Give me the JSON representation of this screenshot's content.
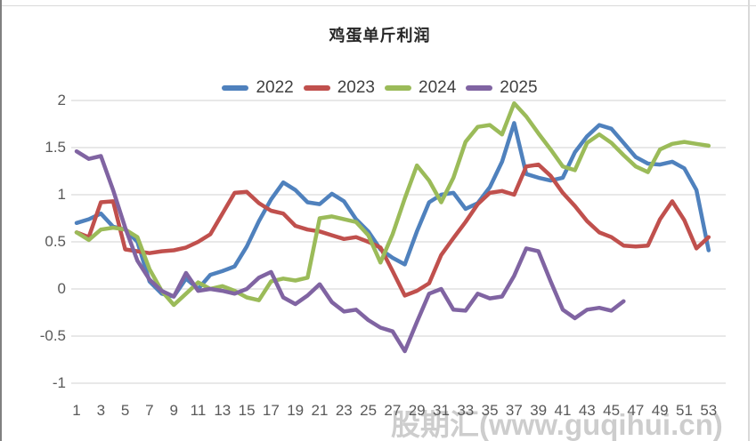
{
  "title": "鸡蛋单斤利润",
  "watermark": "股期汇(www.guqihui.cn)",
  "legend": {
    "items": [
      {
        "label": "2022",
        "color": "#4F81BD"
      },
      {
        "label": "2023",
        "color": "#C0504D"
      },
      {
        "label": "2024",
        "color": "#9BBB59"
      },
      {
        "label": "2025",
        "color": "#8064A2"
      }
    ]
  },
  "chart_data": {
    "type": "line",
    "title": "鸡蛋单斤利润",
    "xlabel": "",
    "ylabel": "",
    "x": [
      1,
      2,
      3,
      4,
      5,
      6,
      7,
      8,
      9,
      10,
      11,
      12,
      13,
      14,
      15,
      16,
      17,
      18,
      19,
      20,
      21,
      22,
      23,
      24,
      25,
      26,
      27,
      28,
      29,
      30,
      31,
      32,
      33,
      34,
      35,
      36,
      37,
      38,
      39,
      40,
      41,
      42,
      43,
      44,
      45,
      46,
      47,
      48,
      49,
      50,
      51,
      52,
      53
    ],
    "x_tick_labels": [
      "1",
      "3",
      "5",
      "7",
      "9",
      "11",
      "13",
      "15",
      "17",
      "19",
      "21",
      "23",
      "25",
      "27",
      "29",
      "31",
      "33",
      "35",
      "37",
      "39",
      "41",
      "43",
      "45",
      "47",
      "49",
      "51",
      "53"
    ],
    "y_ticks": [
      2,
      1.5,
      1,
      0.5,
      0,
      -0.5,
      -1
    ],
    "y_tick_labels": [
      "2",
      "1.5",
      "1",
      "0.5",
      "0",
      "-0.5",
      "-1"
    ],
    "xlim": [
      1,
      53
    ],
    "ylim": [
      -1,
      2
    ],
    "grid": "horizontal",
    "legend_position": "top",
    "series": [
      {
        "name": "2022",
        "color": "#4F81BD",
        "values": [
          0.7,
          0.74,
          0.8,
          0.66,
          0.63,
          0.5,
          0.08,
          -0.05,
          -0.08,
          0.11,
          0.0,
          0.15,
          0.19,
          0.24,
          0.45,
          0.72,
          0.95,
          1.13,
          1.05,
          0.92,
          0.9,
          1.01,
          0.93,
          0.74,
          0.61,
          0.42,
          0.33,
          0.26,
          0.61,
          0.92,
          1.0,
          1.02,
          0.85,
          0.91,
          1.08,
          1.35,
          1.76,
          1.22,
          1.18,
          1.15,
          1.18,
          1.45,
          1.62,
          1.74,
          1.7,
          1.55,
          1.4,
          1.33,
          1.32,
          1.35,
          1.28,
          1.05,
          0.41
        ]
      },
      {
        "name": "2023",
        "color": "#C0504D",
        "values": [
          0.6,
          0.55,
          0.92,
          0.93,
          0.42,
          0.4,
          0.38,
          0.4,
          0.41,
          0.44,
          0.5,
          0.58,
          0.8,
          1.02,
          1.03,
          0.91,
          0.83,
          0.8,
          0.67,
          0.63,
          0.61,
          0.57,
          0.53,
          0.55,
          0.5,
          0.44,
          0.19,
          -0.07,
          -0.02,
          0.06,
          0.36,
          0.54,
          0.71,
          0.9,
          1.02,
          1.04,
          1.0,
          1.3,
          1.32,
          1.2,
          1.02,
          0.88,
          0.72,
          0.6,
          0.55,
          0.46,
          0.45,
          0.46,
          0.74,
          0.93,
          0.73,
          0.43,
          0.55
        ]
      },
      {
        "name": "2024",
        "color": "#9BBB59",
        "values": [
          0.6,
          0.52,
          0.63,
          0.65,
          0.63,
          0.55,
          0.21,
          -0.02,
          -0.17,
          -0.05,
          0.07,
          0.0,
          0.03,
          -0.02,
          -0.09,
          -0.12,
          0.08,
          0.11,
          0.09,
          0.12,
          0.75,
          0.77,
          0.74,
          0.71,
          0.57,
          0.28,
          0.58,
          0.96,
          1.31,
          1.15,
          0.92,
          1.18,
          1.56,
          1.72,
          1.74,
          1.64,
          1.97,
          1.83,
          1.65,
          1.48,
          1.3,
          1.26,
          1.55,
          1.64,
          1.55,
          1.42,
          1.3,
          1.24,
          1.48,
          1.54,
          1.56,
          1.54,
          1.52
        ]
      },
      {
        "name": "2025",
        "color": "#8064A2",
        "values": [
          1.46,
          1.38,
          1.41,
          1.05,
          0.65,
          0.3,
          0.1,
          -0.02,
          -0.08,
          0.17,
          -0.02,
          0.0,
          -0.02,
          -0.05,
          0.0,
          0.12,
          0.18,
          -0.09,
          -0.16,
          -0.07,
          0.05,
          -0.14,
          -0.24,
          -0.22,
          -0.33,
          -0.41,
          -0.45,
          -0.66,
          -0.35,
          -0.05,
          0.0,
          -0.22,
          -0.23,
          -0.05,
          -0.1,
          -0.08,
          0.14,
          0.43,
          0.4,
          0.08,
          -0.22,
          -0.31,
          -0.22,
          -0.2,
          -0.23,
          -0.13,
          null,
          null,
          null,
          null,
          null,
          null,
          null
        ]
      }
    ]
  }
}
